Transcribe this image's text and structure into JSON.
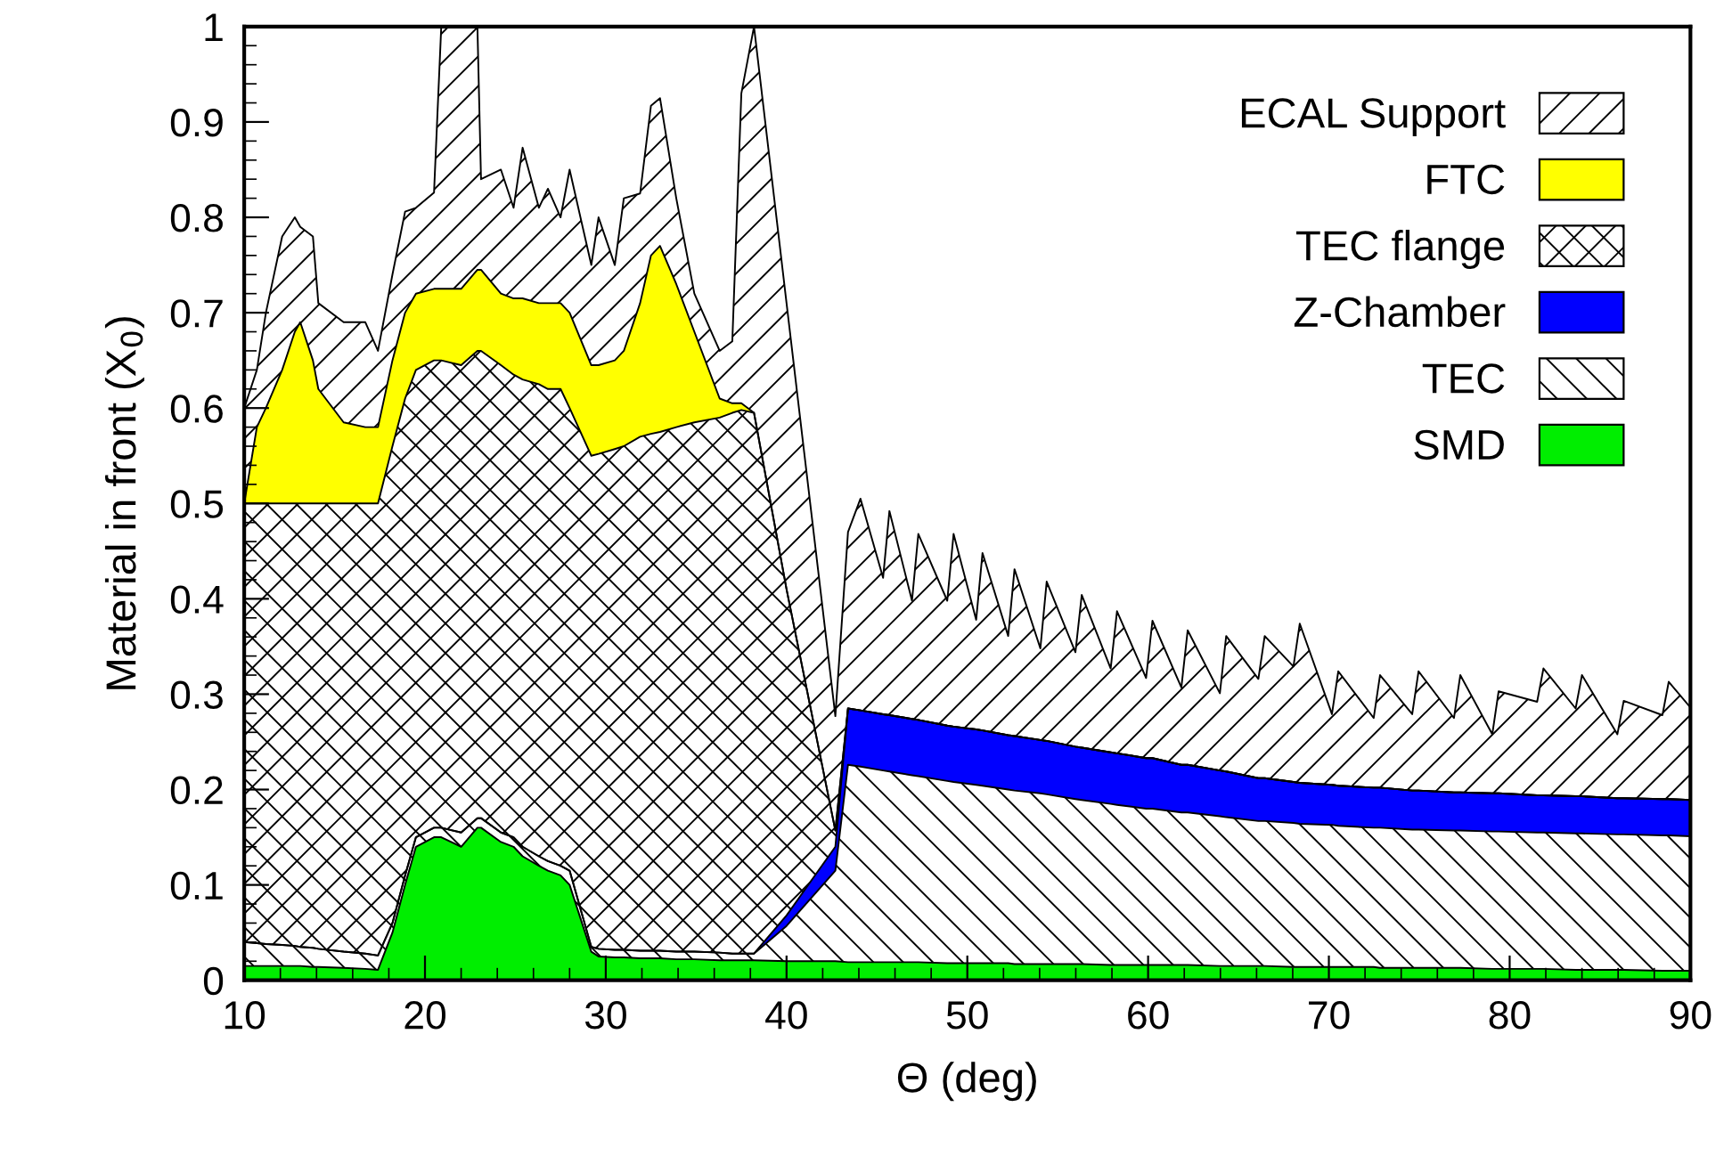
{
  "chart_data": {
    "type": "area",
    "stacked": true,
    "xlabel": "Θ (deg)",
    "ylabel": "Material in front (X$_{0}$)",
    "xlim": [
      10,
      90
    ],
    "ylim": [
      0,
      1
    ],
    "xticks": [
      10,
      20,
      30,
      40,
      50,
      60,
      70,
      80,
      90
    ],
    "yticks": [
      0,
      0.1,
      0.2,
      0.3,
      0.4,
      0.5,
      0.6,
      0.7,
      0.8,
      0.9,
      1
    ],
    "grid": false,
    "legend": "top right",
    "x": [
      10,
      10.7,
      11.2,
      12.1,
      12.8,
      13.1,
      13.8,
      14.1,
      15.5,
      16.7,
      17.4,
      18.2,
      18.9,
      19.5,
      20.5,
      20.9,
      22,
      22.9,
      23.1,
      24.2,
      24.9,
      25.4,
      26.3,
      26.8,
      27.5,
      28,
      29.2,
      29.6,
      30.5,
      31,
      31.9,
      32.5,
      33,
      33.9,
      34.9,
      36.3,
      37,
      37.5,
      38.2,
      40,
      42.7,
      43.4,
      44.09,
      45.34,
      45.69,
      46.94,
      47.29,
      48.89,
      49.24,
      50.49,
      50.84,
      52.26,
      52.61,
      54.04,
      54.39,
      55.98,
      56.33,
      57.93,
      58.28,
      59.89,
      60.24,
      61.84,
      62.19,
      63.97,
      64.32,
      66.1,
      66.45,
      68.04,
      68.39,
      70.17,
      70.52,
      72.48,
      72.83,
      74.61,
      74.96,
      76.92,
      77.27,
      79.04,
      79.39,
      81.52,
      81.87,
      83.65,
      84,
      85.96,
      86.31,
      88.45,
      88.8,
      90
    ],
    "series": [
      {
        "name": "SMD",
        "color": "#00ee00",
        "values": [
          0.015,
          0.015,
          0.015,
          0.015,
          0.015,
          0.015,
          0.014,
          0.014,
          0.013,
          0.012,
          0.011,
          0.05,
          0.1,
          0.14,
          0.15,
          0.15,
          0.14,
          0.16,
          0.16,
          0.145,
          0.14,
          0.13,
          0.12,
          0.115,
          0.11,
          0.1,
          0.03,
          0.025,
          0.024,
          0.024,
          0.023,
          0.023,
          0.023,
          0.022,
          0.022,
          0.021,
          0.021,
          0.021,
          0.021,
          0.02,
          0.02,
          0.019,
          0.019,
          0.019,
          0.019,
          0.019,
          0.019,
          0.018,
          0.018,
          0.018,
          0.018,
          0.018,
          0.017,
          0.017,
          0.017,
          0.017,
          0.017,
          0.016,
          0.016,
          0.016,
          0.016,
          0.016,
          0.016,
          0.015,
          0.015,
          0.015,
          0.015,
          0.014,
          0.014,
          0.014,
          0.014,
          0.014,
          0.013,
          0.013,
          0.013,
          0.013,
          0.013,
          0.012,
          0.012,
          0.012,
          0.012,
          0.011,
          0.011,
          0.011,
          0.011,
          0.01,
          0.01,
          0.01
        ]
      },
      {
        "name": "TEC",
        "color": "#ffffff",
        "values": [
          0.025,
          0.024,
          0.023,
          0.022,
          0.021,
          0.02,
          0.02,
          0.019,
          0.017,
          0.016,
          0.015,
          0.01,
          0.01,
          0.01,
          0.01,
          0.01,
          0.015,
          0.01,
          0.01,
          0.01,
          0.01,
          0.01,
          0.01,
          0.01,
          0.01,
          0.015,
          0.005,
          0.008,
          0.008,
          0.008,
          0.008,
          0.008,
          0.008,
          0.008,
          0.008,
          0.008,
          0.007,
          0.007,
          0.007,
          0.037,
          0.095,
          0.207,
          0.205,
          0.201,
          0.2,
          0.196,
          0.195,
          0.191,
          0.19,
          0.187,
          0.186,
          0.182,
          0.182,
          0.179,
          0.178,
          0.173,
          0.172,
          0.169,
          0.168,
          0.164,
          0.164,
          0.16,
          0.16,
          0.157,
          0.156,
          0.152,
          0.152,
          0.151,
          0.15,
          0.149,
          0.148,
          0.146,
          0.147,
          0.145,
          0.145,
          0.144,
          0.144,
          0.144,
          0.144,
          0.143,
          0.143,
          0.143,
          0.143,
          0.142,
          0.142,
          0.142,
          0.142,
          0.141
        ]
      },
      {
        "name": "Z-Chamber",
        "color": "#0000ff",
        "values": [
          0,
          0,
          0,
          0,
          0,
          0,
          0,
          0,
          0,
          0,
          0,
          0,
          0,
          0,
          0,
          0,
          0,
          0,
          0,
          0,
          0,
          0,
          0,
          0,
          0,
          0,
          0,
          0,
          0,
          0,
          0,
          0,
          0,
          0,
          0,
          0,
          0,
          0,
          0,
          0.011,
          0.025,
          0.059,
          0.059,
          0.059,
          0.059,
          0.059,
          0.059,
          0.058,
          0.058,
          0.058,
          0.058,
          0.057,
          0.057,
          0.056,
          0.056,
          0.055,
          0.055,
          0.054,
          0.054,
          0.053,
          0.053,
          0.05,
          0.05,
          0.048,
          0.048,
          0.045,
          0.045,
          0.043,
          0.043,
          0.042,
          0.042,
          0.042,
          0.042,
          0.041,
          0.041,
          0.04,
          0.04,
          0.04,
          0.04,
          0.039,
          0.039,
          0.039,
          0.039,
          0.038,
          0.038,
          0.038,
          0.038,
          0.038
        ]
      },
      {
        "name": "TEC flange",
        "color": "#ffffff",
        "values": [
          0.46,
          0.461,
          0.462,
          0.463,
          0.464,
          0.465,
          0.466,
          0.467,
          0.47,
          0.472,
          0.474,
          0.5,
          0.5,
          0.49,
          0.49,
          0.49,
          0.49,
          0.49,
          0.49,
          0.49,
          0.485,
          0.49,
          0.495,
          0.495,
          0.5,
          0.485,
          0.515,
          0.519,
          0.525,
          0.528,
          0.539,
          0.542,
          0.544,
          0.55,
          0.555,
          0.561,
          0.567,
          0.57,
          0.567,
          0.342,
          0.017,
          0,
          0,
          0,
          0,
          0,
          0,
          0,
          0,
          0,
          0,
          0,
          0,
          0,
          0,
          0,
          0,
          0,
          0,
          0,
          0,
          0,
          0,
          0,
          0,
          0,
          0,
          0,
          0,
          0,
          0,
          0,
          0,
          0,
          0,
          0,
          0,
          0,
          0,
          0,
          0,
          0,
          0,
          0,
          0,
          0,
          0,
          0
        ]
      },
      {
        "name": "FTC",
        "color": "#ffff00",
        "values": [
          0,
          0.08,
          0.1,
          0.14,
          0.18,
          0.19,
          0.15,
          0.12,
          0.085,
          0.08,
          0.08,
          0.09,
          0.09,
          0.08,
          0.075,
          0.075,
          0.08,
          0.085,
          0.085,
          0.075,
          0.08,
          0.085,
          0.085,
          0.09,
          0.09,
          0.1,
          0.095,
          0.093,
          0.093,
          0.1,
          0.14,
          0.187,
          0.195,
          0.15,
          0.095,
          0.02,
          0.01,
          0.007,
          0,
          0,
          0,
          0,
          0,
          0,
          0,
          0,
          0,
          0,
          0,
          0,
          0,
          0,
          0,
          0,
          0,
          0,
          0,
          0,
          0,
          0,
          0,
          0,
          0,
          0,
          0,
          0,
          0,
          0,
          0,
          0,
          0,
          0,
          0,
          0,
          0,
          0,
          0,
          0,
          0,
          0,
          0,
          0,
          0,
          0,
          0,
          0,
          0,
          0
        ]
      },
      {
        "name": "ECAL Support",
        "color": "#ffffff",
        "values": [
          0.1,
          0.06,
          0.1,
          0.14,
          0.12,
          0.1,
          0.13,
          0.09,
          0.105,
          0.11,
          0.08,
          0.09,
          0.106,
          0.09,
          0.101,
          0.275,
          0.275,
          0.255,
          0.095,
          0.13,
          0.095,
          0.158,
          0.1,
          0.12,
          0.09,
          0.15,
          0.105,
          0.155,
          0.1,
          0.16,
          0.115,
          0.157,
          0.155,
          0.09,
          0.04,
          0.05,
          0.065,
          0.325,
          0.405,
          0.3,
          0.12,
          0.185,
          0.222,
          0.143,
          0.214,
          0.124,
          0.195,
          0.131,
          0.202,
          0.115,
          0.186,
          0.104,
          0.175,
          0.096,
          0.167,
          0.099,
          0.16,
          0.088,
          0.149,
          0.084,
          0.144,
          0.081,
          0.141,
          0.081,
          0.142,
          0.104,
          0.149,
          0.121,
          0.167,
          0.074,
          0.12,
          0.073,
          0.118,
          0.08,
          0.125,
          0.078,
          0.123,
          0.062,
          0.107,
          0.098,
          0.133,
          0.092,
          0.127,
          0.067,
          0.102,
          0.088,
          0.123,
          0.097
        ]
      }
    ]
  }
}
